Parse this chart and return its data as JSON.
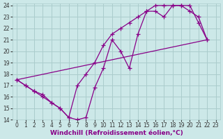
{
  "bg_color": "#cce8e8",
  "grid_color": "#aacccc",
  "line_color": "#880088",
  "xlim": [
    -0.5,
    23.5
  ],
  "ylim": [
    14,
    24.2
  ],
  "xticks": [
    0,
    1,
    2,
    3,
    4,
    5,
    6,
    7,
    8,
    9,
    10,
    11,
    12,
    13,
    14,
    15,
    16,
    17,
    18,
    19,
    20,
    21,
    22,
    23
  ],
  "yticks": [
    14,
    15,
    16,
    17,
    18,
    19,
    20,
    21,
    22,
    23,
    24
  ],
  "xlabel": "Windchill (Refroidissement éolien,°C)",
  "xlabel_fontsize": 6.5,
  "tick_fontsize": 5.5,
  "line_width": 0.9,
  "marker": "+",
  "marker_size": 4,
  "curve1_x": [
    0,
    1,
    2,
    3,
    4,
    5,
    6,
    7,
    8,
    9,
    10,
    11,
    12,
    13,
    14,
    15,
    16,
    17,
    18,
    19,
    20,
    21,
    22
  ],
  "curve1_y": [
    17.5,
    17.0,
    16.5,
    16.0,
    15.5,
    15.0,
    14.2,
    14.0,
    14.2,
    16.8,
    18.5,
    21.0,
    20.0,
    18.5,
    21.5,
    23.5,
    23.5,
    23.0,
    24.0,
    24.0,
    24.0,
    22.5,
    21.0
  ],
  "curve2_x": [
    0,
    1,
    2,
    3,
    4,
    5,
    6,
    7,
    8,
    9,
    10,
    11,
    12,
    13,
    14,
    15,
    16,
    17,
    18,
    19,
    20,
    21,
    22
  ],
  "curve2_y": [
    17.5,
    17.0,
    16.5,
    16.2,
    15.5,
    15.0,
    14.2,
    17.0,
    18.0,
    19.0,
    20.5,
    21.5,
    22.0,
    22.5,
    23.0,
    23.5,
    24.0,
    24.0,
    24.0,
    24.0,
    23.5,
    23.0,
    21.0
  ],
  "curve3_x": [
    0,
    22
  ],
  "curve3_y": [
    17.5,
    21.0
  ]
}
